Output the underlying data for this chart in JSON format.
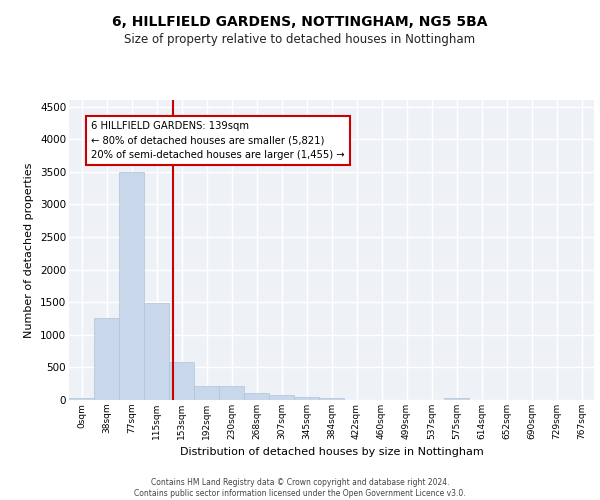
{
  "title": "6, HILLFIELD GARDENS, NOTTINGHAM, NG5 5BA",
  "subtitle": "Size of property relative to detached houses in Nottingham",
  "xlabel": "Distribution of detached houses by size in Nottingham",
  "ylabel": "Number of detached properties",
  "bar_color": "#c8d8ea",
  "bar_edge_color": "#b0c4d8",
  "background_color": "#eef2f7",
  "grid_color": "#ffffff",
  "bin_labels": [
    "0sqm",
    "38sqm",
    "77sqm",
    "115sqm",
    "153sqm",
    "192sqm",
    "230sqm",
    "268sqm",
    "307sqm",
    "345sqm",
    "384sqm",
    "422sqm",
    "460sqm",
    "499sqm",
    "537sqm",
    "575sqm",
    "614sqm",
    "652sqm",
    "690sqm",
    "729sqm",
    "767sqm"
  ],
  "bar_heights": [
    25,
    1260,
    3500,
    1480,
    580,
    220,
    220,
    110,
    75,
    50,
    25,
    0,
    0,
    0,
    0,
    25,
    0,
    0,
    0,
    0,
    0
  ],
  "red_line_x": 3.65,
  "annotation_text": "6 HILLFIELD GARDENS: 139sqm\n← 80% of detached houses are smaller (5,821)\n20% of semi-detached houses are larger (1,455) →",
  "annotation_box_color": "#ffffff",
  "annotation_box_edge_color": "#cc0000",
  "red_line_color": "#cc0000",
  "ylim": [
    0,
    4600
  ],
  "yticks": [
    0,
    500,
    1000,
    1500,
    2000,
    2500,
    3000,
    3500,
    4000,
    4500
  ],
  "footer_line1": "Contains HM Land Registry data © Crown copyright and database right 2024.",
  "footer_line2": "Contains public sector information licensed under the Open Government Licence v3.0."
}
